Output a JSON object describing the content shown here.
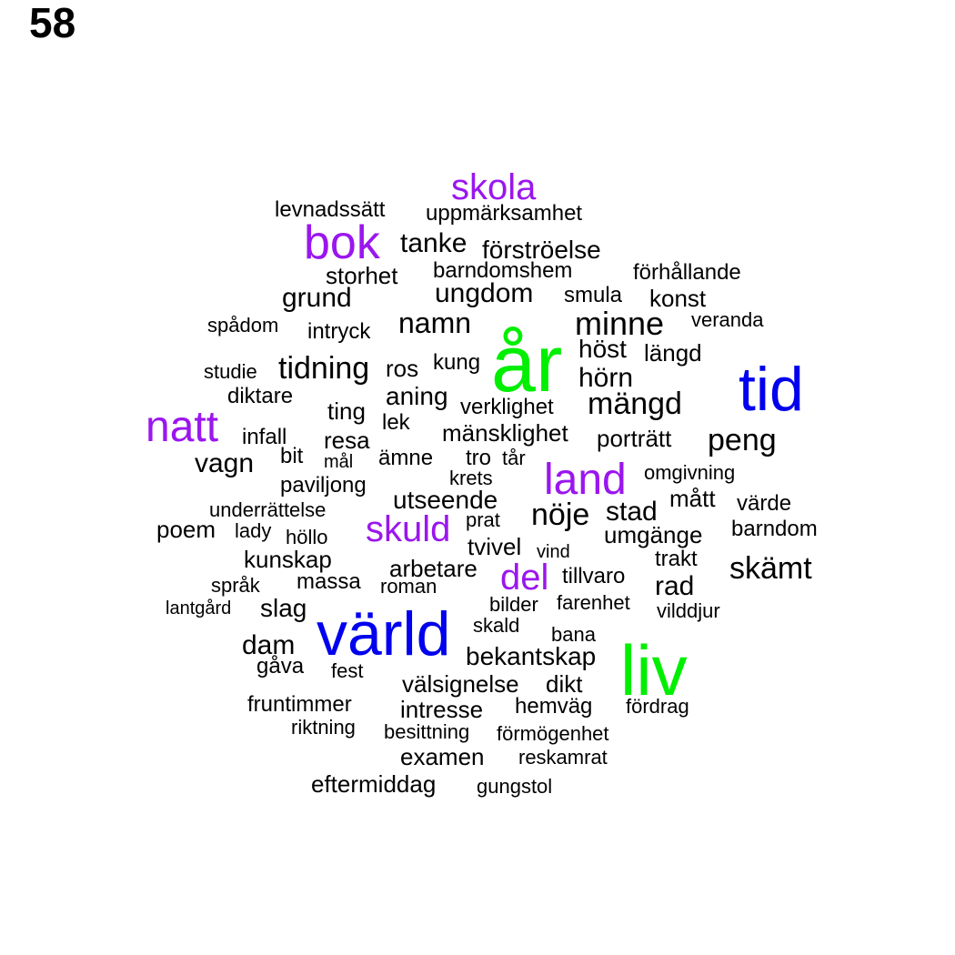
{
  "page_number": "58",
  "colors": {
    "green": "#00ee00",
    "blue": "#0000ee",
    "purple": "#9a16ee",
    "black": "#000000"
  },
  "words": [
    {
      "text": "år",
      "color": "green"
    },
    {
      "text": "liv",
      "color": "green"
    },
    {
      "text": "tid",
      "color": "blue"
    },
    {
      "text": "värld",
      "color": "blue"
    },
    {
      "text": "skola",
      "color": "purple"
    },
    {
      "text": "bok",
      "color": "purple"
    },
    {
      "text": "natt",
      "color": "purple"
    },
    {
      "text": "land",
      "color": "purple"
    },
    {
      "text": "skuld",
      "color": "purple"
    },
    {
      "text": "del",
      "color": "purple"
    },
    {
      "text": "levnadssätt",
      "color": "black"
    },
    {
      "text": "uppmärksamhet",
      "color": "black"
    },
    {
      "text": "tanke",
      "color": "black"
    },
    {
      "text": "förströelse",
      "color": "black"
    },
    {
      "text": "storhet",
      "color": "black"
    },
    {
      "text": "barndomshem",
      "color": "black"
    },
    {
      "text": "förhållande",
      "color": "black"
    },
    {
      "text": "grund",
      "color": "black"
    },
    {
      "text": "ungdom",
      "color": "black"
    },
    {
      "text": "smula",
      "color": "black"
    },
    {
      "text": "konst",
      "color": "black"
    },
    {
      "text": "spådom",
      "color": "black"
    },
    {
      "text": "intryck",
      "color": "black"
    },
    {
      "text": "namn",
      "color": "black"
    },
    {
      "text": "minne",
      "color": "black"
    },
    {
      "text": "veranda",
      "color": "black"
    },
    {
      "text": "höst",
      "color": "black"
    },
    {
      "text": "längd",
      "color": "black"
    },
    {
      "text": "studie",
      "color": "black"
    },
    {
      "text": "tidning",
      "color": "black"
    },
    {
      "text": "ros",
      "color": "black"
    },
    {
      "text": "kung",
      "color": "black"
    },
    {
      "text": "hörn",
      "color": "black"
    },
    {
      "text": "diktare",
      "color": "black"
    },
    {
      "text": "aning",
      "color": "black"
    },
    {
      "text": "ting",
      "color": "black"
    },
    {
      "text": "verklighet",
      "color": "black"
    },
    {
      "text": "mängd",
      "color": "black"
    },
    {
      "text": "lek",
      "color": "black"
    },
    {
      "text": "infall",
      "color": "black"
    },
    {
      "text": "resa",
      "color": "black"
    },
    {
      "text": "mänsklighet",
      "color": "black"
    },
    {
      "text": "porträtt",
      "color": "black"
    },
    {
      "text": "peng",
      "color": "black"
    },
    {
      "text": "bit",
      "color": "black"
    },
    {
      "text": "vagn",
      "color": "black"
    },
    {
      "text": "mål",
      "color": "black"
    },
    {
      "text": "ämne",
      "color": "black"
    },
    {
      "text": "tro",
      "color": "black"
    },
    {
      "text": "tår",
      "color": "black"
    },
    {
      "text": "omgivning",
      "color": "black"
    },
    {
      "text": "paviljong",
      "color": "black"
    },
    {
      "text": "krets",
      "color": "black"
    },
    {
      "text": "utseende",
      "color": "black"
    },
    {
      "text": "mått",
      "color": "black"
    },
    {
      "text": "värde",
      "color": "black"
    },
    {
      "text": "underrättelse",
      "color": "black"
    },
    {
      "text": "nöje",
      "color": "black"
    },
    {
      "text": "stad",
      "color": "black"
    },
    {
      "text": "prat",
      "color": "black"
    },
    {
      "text": "poem",
      "color": "black"
    },
    {
      "text": "lady",
      "color": "black"
    },
    {
      "text": "höllo",
      "color": "black"
    },
    {
      "text": "umgänge",
      "color": "black"
    },
    {
      "text": "barndom",
      "color": "black"
    },
    {
      "text": "tvivel",
      "color": "black"
    },
    {
      "text": "vind",
      "color": "black"
    },
    {
      "text": "kunskap",
      "color": "black"
    },
    {
      "text": "trakt",
      "color": "black"
    },
    {
      "text": "skämt",
      "color": "black"
    },
    {
      "text": "arbetare",
      "color": "black"
    },
    {
      "text": "tillvaro",
      "color": "black"
    },
    {
      "text": "språk",
      "color": "black"
    },
    {
      "text": "massa",
      "color": "black"
    },
    {
      "text": "roman",
      "color": "black"
    },
    {
      "text": "rad",
      "color": "black"
    },
    {
      "text": "bilder",
      "color": "black"
    },
    {
      "text": "farenhet",
      "color": "black"
    },
    {
      "text": "lantgård",
      "color": "black"
    },
    {
      "text": "slag",
      "color": "black"
    },
    {
      "text": "vilddjur",
      "color": "black"
    },
    {
      "text": "skald",
      "color": "black"
    },
    {
      "text": "bana",
      "color": "black"
    },
    {
      "text": "dam",
      "color": "black"
    },
    {
      "text": "bekantskap",
      "color": "black"
    },
    {
      "text": "gåva",
      "color": "black"
    },
    {
      "text": "fest",
      "color": "black"
    },
    {
      "text": "välsignelse",
      "color": "black"
    },
    {
      "text": "dikt",
      "color": "black"
    },
    {
      "text": "fruntimmer",
      "color": "black"
    },
    {
      "text": "intresse",
      "color": "black"
    },
    {
      "text": "hemväg",
      "color": "black"
    },
    {
      "text": "fördrag",
      "color": "black"
    },
    {
      "text": "riktning",
      "color": "black"
    },
    {
      "text": "besittning",
      "color": "black"
    },
    {
      "text": "förmögenhet",
      "color": "black"
    },
    {
      "text": "examen",
      "color": "black"
    },
    {
      "text": "reskamrat",
      "color": "black"
    },
    {
      "text": "eftermiddag",
      "color": "black"
    },
    {
      "text": "gungstol",
      "color": "black"
    }
  ]
}
